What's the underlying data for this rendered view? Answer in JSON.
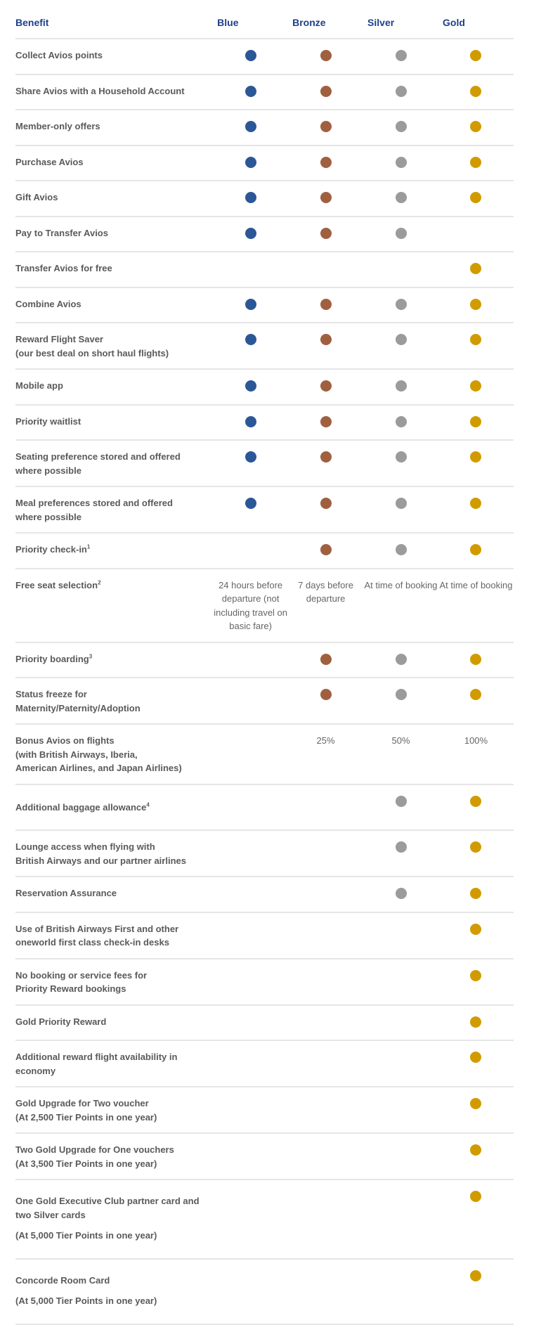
{
  "header": {
    "benefit": "Benefit",
    "tiers": [
      "Blue",
      "Bronze",
      "Silver",
      "Gold"
    ]
  },
  "colors": {
    "blue": "#2b5797",
    "bronze": "#a0603f",
    "silver": "#9b9b9b",
    "gold": "#d19b00",
    "header": "#1d3f8a"
  },
  "rows": [
    {
      "lines": [
        "Collect Avios points"
      ],
      "cells": [
        "dot",
        "dot",
        "dot",
        "dot"
      ]
    },
    {
      "lines": [
        "Share Avios with a Household Account"
      ],
      "cells": [
        "dot",
        "dot",
        "dot",
        "dot"
      ]
    },
    {
      "lines": [
        "Member-only offers"
      ],
      "cells": [
        "dot",
        "dot",
        "dot",
        "dot"
      ]
    },
    {
      "lines": [
        "Purchase Avios"
      ],
      "cells": [
        "dot",
        "dot",
        "dot",
        "dot"
      ]
    },
    {
      "lines": [
        "Gift Avios"
      ],
      "cells": [
        "dot",
        "dot",
        "dot",
        "dot"
      ]
    },
    {
      "lines": [
        "Pay to Transfer Avios"
      ],
      "cells": [
        "dot",
        "dot",
        "dot",
        ""
      ]
    },
    {
      "lines": [
        "Transfer Avios for free"
      ],
      "cells": [
        "",
        "",
        "",
        "dot"
      ]
    },
    {
      "lines": [
        "Combine Avios"
      ],
      "cells": [
        "dot",
        "dot",
        "dot",
        "dot"
      ]
    },
    {
      "lines": [
        "Reward Flight Saver",
        "(our best deal on short haul flights)"
      ],
      "cells": [
        "dot",
        "dot",
        "dot",
        "dot"
      ]
    },
    {
      "lines": [
        "Mobile app"
      ],
      "cells": [
        "dot",
        "dot",
        "dot",
        "dot"
      ]
    },
    {
      "lines": [
        "Priority waitlist"
      ],
      "cells": [
        "dot",
        "dot",
        "dot",
        "dot"
      ]
    },
    {
      "lines": [
        "Seating preference stored and offered",
        "where possible"
      ],
      "cells": [
        "dot",
        "dot",
        "dot",
        "dot"
      ]
    },
    {
      "lines": [
        "Meal preferences stored and offered",
        "where possible"
      ],
      "cells": [
        "dot",
        "dot",
        "dot",
        "dot"
      ]
    },
    {
      "lines": [
        "Priority check-in"
      ],
      "sup": "1",
      "cells": [
        "",
        "dot",
        "dot",
        "dot"
      ]
    },
    {
      "lines": [
        "Free seat selection"
      ],
      "sup": "2",
      "cells": [
        "24 hours before departure (not including travel on basic fare)",
        "7 days before departure",
        "At time of booking",
        "At time of booking"
      ]
    },
    {
      "lines": [
        "Priority boarding"
      ],
      "sup": "3",
      "cells": [
        "",
        "dot",
        "dot",
        "dot"
      ]
    },
    {
      "lines": [
        "Status freeze for",
        "Maternity/Paternity/Adoption"
      ],
      "cells": [
        "",
        "dot",
        "dot",
        "dot"
      ]
    },
    {
      "lines": [
        "Bonus Avios on flights",
        "(with British Airways, Iberia,",
        "American Airlines, and Japan Airlines)"
      ],
      "cells": [
        "",
        "25%",
        "50%",
        "100%"
      ]
    },
    {
      "lines": [
        "Additional baggage allowance"
      ],
      "sup": "4",
      "style": "mid",
      "cells": [
        "",
        "",
        "dot",
        "dot"
      ]
    },
    {
      "lines": [
        "Lounge access when flying with",
        "British Airways and our partner airlines"
      ],
      "cells": [
        "",
        "",
        "dot",
        "dot"
      ]
    },
    {
      "lines": [
        "Reservation Assurance"
      ],
      "cells": [
        "",
        "",
        "dot",
        "dot"
      ]
    },
    {
      "lines": [
        "Use of British Airways First and other",
        "oneworld first class check-in desks"
      ],
      "cells": [
        "",
        "",
        "",
        "dot"
      ]
    },
    {
      "lines": [
        "No booking or service fees for",
        "Priority Reward bookings"
      ],
      "cells": [
        "",
        "",
        "",
        "dot"
      ]
    },
    {
      "lines": [
        "Gold Priority Reward"
      ],
      "cells": [
        "",
        "",
        "",
        "dot"
      ]
    },
    {
      "lines": [
        "Additional reward flight availability in",
        "economy"
      ],
      "cells": [
        "",
        "",
        "",
        "dot"
      ]
    },
    {
      "lines": [
        "Gold Upgrade for Two voucher",
        "(At 2,500 Tier Points in one year)"
      ],
      "cells": [
        "",
        "",
        "",
        "dot"
      ]
    },
    {
      "lines": [
        "Two Gold Upgrade for One vouchers",
        "(At 3,500 Tier Points in one year)"
      ],
      "cells": [
        "",
        "",
        "",
        "dot"
      ]
    },
    {
      "lines": [
        "One Gold Executive Club partner card and",
        "two Silver cards"
      ],
      "note": "(At 5,000 Tier Points in one year)",
      "style": "extra",
      "cells": [
        "",
        "",
        "",
        "dot"
      ]
    },
    {
      "lines": [
        "Concorde Room Card"
      ],
      "note": "(At 5,000 Tier Points in one year)",
      "style": "extra",
      "cells": [
        "",
        "",
        "",
        "dot"
      ]
    }
  ]
}
